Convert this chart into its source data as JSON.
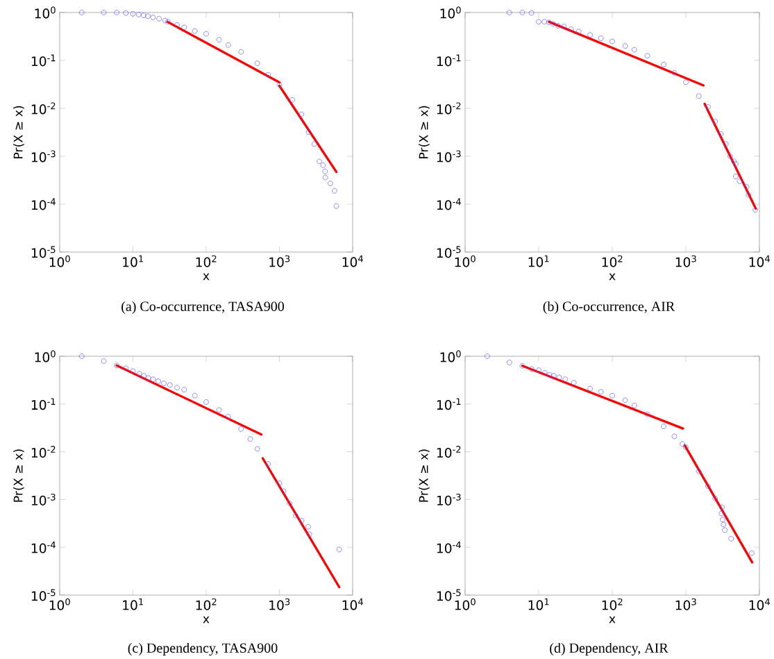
{
  "chart_data": [
    {
      "type": "scatter",
      "xlabel": "x",
      "ylabel": "Pr(X ≥ x)",
      "annotations": [
        "(a)  Co-occurrence, TASA900"
      ],
      "log": "xy",
      "marker": "circle",
      "xlim": [
        1,
        10000
      ],
      "ylim": [
        1e-05,
        1
      ],
      "xticks": [
        {
          "value": 1,
          "label": "10$^{0}$"
        },
        {
          "value": 10,
          "label": "10$^{1}$"
        },
        {
          "value": 100,
          "label": "10$^{2}$"
        },
        {
          "value": 1000,
          "label": "10$^{3}$"
        },
        {
          "value": 10000,
          "label": "10$^{4}$"
        }
      ],
      "yticks": [
        {
          "value": 1e-05,
          "label": "10$^{-5}$"
        },
        {
          "value": 0.0001,
          "label": "10$^{-4}$"
        },
        {
          "value": 0.001,
          "label": "10$^{-3}$"
        },
        {
          "value": 0.01,
          "label": "10$^{-2}$"
        },
        {
          "value": 0.1,
          "label": "10$^{-1}$"
        },
        {
          "value": 1,
          "label": "10$^{0}$"
        }
      ],
      "series": [
        {
          "color": "#5555ff",
          "x": [
            2,
            4,
            6,
            8,
            10,
            12,
            14,
            16,
            18.8,
            22.8,
            27.5,
            30,
            40,
            50,
            70,
            100,
            150,
            200,
            300,
            500,
            700,
            1000,
            1500,
            2000,
            2500,
            3000,
            3500,
            3960,
            4200,
            4240,
            4960,
            5640,
            5990
          ],
          "values": [
            1,
            1,
            1,
            0.976,
            0.94,
            0.91,
            0.87,
            0.84,
            0.79,
            0.74,
            0.68,
            0.64,
            0.55,
            0.49,
            0.41,
            0.36,
            0.27,
            0.21,
            0.15,
            0.087,
            0.05,
            0.031,
            0.015,
            0.0075,
            0.0032,
            0.0018,
            0.00078,
            0.00065,
            0.00048,
            0.00036,
            0.00027,
            0.00019,
            9.1e-05
          ]
        },
        {
          "type": "line",
          "color": "#ff0000",
          "marker": "none",
          "x": [
            29.6,
            1005
          ],
          "values": [
            0.64,
            0.0346
          ]
        },
        {
          "type": "line",
          "color": "#ff0000",
          "marker": "none",
          "x": [
            1000,
            6000
          ],
          "values": [
            0.0296,
            0.00047
          ]
        }
      ]
    },
    {
      "type": "scatter",
      "xlabel": "x",
      "ylabel": "Pr(X ≥ x)",
      "annotations": [
        "(b)  Co-occurrence, AIR"
      ],
      "log": "xy",
      "marker": "circle",
      "xlim": [
        1,
        10000
      ],
      "ylim": [
        1e-05,
        1
      ],
      "xticks": [
        {
          "value": 1,
          "label": "10$^{0}$"
        },
        {
          "value": 10,
          "label": "10$^{1}$"
        },
        {
          "value": 100,
          "label": "10$^{2}$"
        },
        {
          "value": 1000,
          "label": "10$^{3}$"
        },
        {
          "value": 10000,
          "label": "10$^{4}$"
        }
      ],
      "yticks": [
        {
          "value": 1e-05,
          "label": "10$^{-5}$"
        },
        {
          "value": 0.0001,
          "label": "10$^{-4}$"
        },
        {
          "value": 0.001,
          "label": "10$^{-3}$"
        },
        {
          "value": 0.01,
          "label": "10$^{-2}$"
        },
        {
          "value": 0.1,
          "label": "10$^{-1}$"
        },
        {
          "value": 1,
          "label": "10$^{0}$"
        }
      ],
      "series": [
        {
          "color": "#5555ff",
          "x": [
            4,
            6,
            8,
            10,
            12,
            13.8,
            15.7,
            18.3,
            22,
            27.6,
            35,
            50,
            70,
            100,
            150,
            200,
            300,
            500,
            700,
            1000,
            1500,
            2000,
            2500,
            3000,
            3500,
            4000,
            4500,
            4770,
            4770,
            5380,
            6700,
            7110,
            8790
          ],
          "values": [
            1,
            1,
            0.98,
            0.64,
            0.64,
            0.62,
            0.58,
            0.53,
            0.51,
            0.45,
            0.4,
            0.34,
            0.29,
            0.25,
            0.2,
            0.167,
            0.125,
            0.082,
            0.055,
            0.035,
            0.018,
            0.0107,
            0.0053,
            0.0029,
            0.0018,
            0.001,
            0.00078,
            0.00069,
            0.00038,
            0.0003,
            0.00023,
            0.000156,
            7.6e-05
          ]
        },
        {
          "type": "line",
          "color": "#ff0000",
          "marker": "none",
          "x": [
            13.8,
            1735
          ],
          "values": [
            0.64,
            0.03
          ]
        },
        {
          "type": "line",
          "color": "#ff0000",
          "marker": "none",
          "x": [
            1800,
            8930
          ],
          "values": [
            0.0124,
            8.07e-05
          ]
        }
      ]
    },
    {
      "type": "scatter",
      "xlabel": "x",
      "ylabel": "Pr(X ≥ x)",
      "annotations": [
        "(c)  Dependency, TASA900"
      ],
      "log": "xy",
      "marker": "circle",
      "xlim": [
        1,
        10000
      ],
      "ylim": [
        1e-05,
        1
      ],
      "xticks": [
        {
          "value": 1,
          "label": "10$^{0}$"
        },
        {
          "value": 10,
          "label": "10$^{1}$"
        },
        {
          "value": 100,
          "label": "10$^{2}$"
        },
        {
          "value": 1000,
          "label": "10$^{3}$"
        },
        {
          "value": 10000,
          "label": "10$^{4}$"
        }
      ],
      "yticks": [
        {
          "value": 1e-05,
          "label": "10$^{-5}$"
        },
        {
          "value": 0.0001,
          "label": "10$^{-4}$"
        },
        {
          "value": 0.001,
          "label": "10$^{-3}$"
        },
        {
          "value": 0.01,
          "label": "10$^{-2}$"
        },
        {
          "value": 0.1,
          "label": "10$^{-1}$"
        },
        {
          "value": 1,
          "label": "10$^{0}$"
        }
      ],
      "series": [
        {
          "color": "#5555ff",
          "x": [
            2,
            4,
            6,
            8,
            10,
            12.2,
            14.1,
            16.2,
            18.9,
            22.2,
            26.4,
            32,
            40,
            50,
            70,
            100,
            150,
            200,
            300,
            400,
            500,
            700,
            1000,
            1140,
            1380,
            1670,
            2010,
            2470,
            2560,
            6560
          ],
          "values": [
            1,
            0.79,
            0.64,
            0.56,
            0.49,
            0.43,
            0.39,
            0.35,
            0.33,
            0.3,
            0.27,
            0.25,
            0.22,
            0.2,
            0.15,
            0.11,
            0.075,
            0.054,
            0.03,
            0.0185,
            0.0115,
            0.0056,
            0.0022,
            0.0015,
            0.00083,
            0.00046,
            0.00036,
            0.00027,
            0.000188,
            9e-05
          ]
        },
        {
          "type": "line",
          "color": "#ff0000",
          "marker": "none",
          "x": [
            6,
            568
          ],
          "values": [
            0.64,
            0.023
          ]
        },
        {
          "type": "line",
          "color": "#ff0000",
          "marker": "none",
          "x": [
            593,
            6560
          ],
          "values": [
            0.0073,
            1.47e-05
          ]
        }
      ]
    },
    {
      "type": "scatter",
      "xlabel": "x",
      "ylabel": "Pr(X ≥ x)",
      "annotations": [
        "(d)  Dependency, AIR"
      ],
      "log": "xy",
      "marker": "circle",
      "xlim": [
        1,
        10000
      ],
      "ylim": [
        1e-05,
        1
      ],
      "xticks": [
        {
          "value": 1,
          "label": "10$^{0}$"
        },
        {
          "value": 10,
          "label": "10$^{1}$"
        },
        {
          "value": 100,
          "label": "10$^{2}$"
        },
        {
          "value": 1000,
          "label": "10$^{3}$"
        },
        {
          "value": 10000,
          "label": "10$^{4}$"
        }
      ],
      "yticks": [
        {
          "value": 1e-05,
          "label": "10$^{-5}$"
        },
        {
          "value": 0.0001,
          "label": "10$^{-4}$"
        },
        {
          "value": 0.001,
          "label": "10$^{-3}$"
        },
        {
          "value": 0.01,
          "label": "10$^{-2}$"
        },
        {
          "value": 0.1,
          "label": "10$^{-1}$"
        },
        {
          "value": 1,
          "label": "10$^{0}$"
        }
      ],
      "series": [
        {
          "color": "#5555ff",
          "x": [
            2,
            4,
            6,
            8,
            10,
            12.1,
            14,
            16,
            19,
            23,
            30,
            50,
            70,
            100,
            150,
            200,
            300,
            500,
            700,
            900,
            1000,
            1500,
            2000,
            2500,
            3100,
            3050,
            3170,
            3250,
            3390,
            4130,
            7850
          ],
          "values": [
            1,
            0.74,
            0.63,
            0.54,
            0.51,
            0.45,
            0.41,
            0.39,
            0.36,
            0.33,
            0.28,
            0.21,
            0.18,
            0.15,
            0.12,
            0.093,
            0.061,
            0.034,
            0.021,
            0.0145,
            0.0124,
            0.0039,
            0.0019,
            0.00105,
            0.00069,
            0.00051,
            0.00038,
            0.0003,
            0.00023,
            0.000152,
            7.6e-05
          ]
        },
        {
          "type": "line",
          "color": "#ff0000",
          "marker": "none",
          "x": [
            6,
            914
          ],
          "values": [
            0.63,
            0.0306
          ]
        },
        {
          "type": "line",
          "color": "#ff0000",
          "marker": "none",
          "x": [
            964,
            7980
          ],
          "values": [
            0.0137,
            4.84e-05
          ]
        }
      ]
    }
  ]
}
